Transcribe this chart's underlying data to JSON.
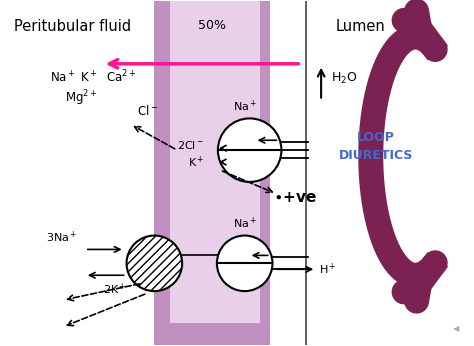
{
  "bg_color": "#ffffff",
  "tubule_color": "#c090c0",
  "tubule_inner_color": "#e8d0e8",
  "title_left": "Peritubular fluid",
  "title_right": "Lumen",
  "percent_label": "50%",
  "loop_diuretics": "LOOP\nDIURETICS",
  "loop_diuretics_color": "#4169CD",
  "arrow_color_pink": "#FF1493",
  "circ_arrow_color": "#7B2252",
  "dashed_color": "#222222"
}
